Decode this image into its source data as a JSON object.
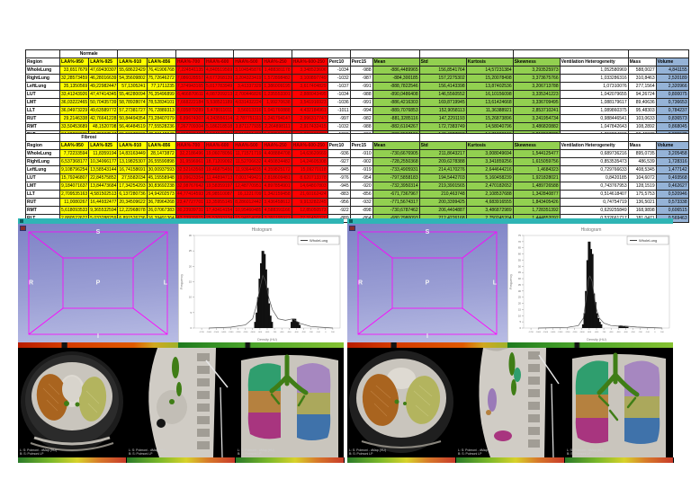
{
  "colors": {
    "laa_bg": "#FFFF00",
    "haa_bg": "#FF0000",
    "haa_text": "#7A0000",
    "stat_bg": "#92D050",
    "volume_bg": "#95B3D7",
    "titlebar_teal": "#2FB5B5",
    "wireframe_magenta": "#FF00FF"
  },
  "table_columns": [
    {
      "label": "Region",
      "group": "white"
    },
    {
      "label": "LAA%-950",
      "group": "yellow"
    },
    {
      "label": "LAA%-925",
      "group": "yellow"
    },
    {
      "label": "LAA%-910",
      "group": "yellow"
    },
    {
      "label": "LAA%-856",
      "group": "yellow"
    },
    {
      "label": "HAA%-700",
      "group": "red"
    },
    {
      "label": "HAA%-600",
      "group": "red"
    },
    {
      "label": "HAA%-500",
      "group": "red"
    },
    {
      "label": "HAA%-250",
      "group": "red"
    },
    {
      "label": "HAA%-600-250",
      "group": "red"
    },
    {
      "label": "Perc10",
      "group": "white"
    },
    {
      "label": "Perc15",
      "group": "white"
    },
    {
      "label": "Mean",
      "group": "green"
    },
    {
      "label": "Std",
      "group": "green"
    },
    {
      "label": "Kurtosis",
      "group": "green"
    },
    {
      "label": "Skewness",
      "group": "green"
    },
    {
      "label": "Ventilation Heterogeneity",
      "group": "white"
    },
    {
      "label": "Mass",
      "group": "white"
    },
    {
      "label": "Volume",
      "group": "blue"
    }
  ],
  "tables": [
    {
      "title": "Normale",
      "rows": [
        {
          "region": "WholeLung",
          "values": [
            "33,6517679",
            "47,69430307",
            "55,68622429",
            "76,41906768",
            "7,224541135",
            "4,840519569",
            "3,104545876",
            "1,488381178",
            "3,348523606",
            "-1034",
            "-988",
            "-886,4489965",
            "156,8541764",
            "14,57231384",
            "3,293525973",
            "1,052580969",
            "588,0027",
            "4,841155"
          ]
        },
        {
          "region": "RightLung",
          "values": [
            "32,28573459",
            "46,28016639",
            "54,35609802",
            "75,72646272",
            "7,086028557",
            "4,677268139",
            "3,204323419",
            "1,572898482",
            "3,100897749",
            "-1032",
            "-987",
            "-884,300185",
            "157,2275302",
            "15,20078498",
            "3,373675766",
            "1,033286316",
            "310,8463",
            "2,520189"
          ]
        },
        {
          "region": "LeftLung",
          "values": [
            "35,1350569",
            "49,22982447",
            "57,1305241",
            "77,1711235",
            "7,374943165",
            "5,017783949",
            "3,41337329",
            "1,386009195",
            "3,617404829",
            "-1037",
            "-991",
            "-888,7822546",
            "156,4143398",
            "13,87402536",
            "3,206713788",
            "1,07310076",
            "277,1564",
            "2,320966"
          ]
        },
        {
          "region": "LUT",
          "values": [
            "33,41243926",
            "47,47414345",
            "55,46280094",
            "76,35496899",
            "6,466870611",
            "4,087209213",
            "2,700446826",
            "1,235553301",
            "2,888043495",
            "-1034",
            "-988",
            "-890,0486408",
            "146,5560552",
            "16,10156098",
            "3,335341223",
            "1,042079655",
            "94,26724",
            "0,800075"
          ]
        },
        {
          "region": "LMT",
          "values": [
            "36,03222465",
            "50,70435739",
            "58,78928074",
            "78,52834101",
            "7,668222184",
            "5,538521189",
            "4,031432224",
            "1,99270638",
            "3,541916923",
            "-1036",
            "-991",
            "-886,4216303",
            "169,8719945",
            "13,61424668",
            "3,336709495",
            "1,088179617",
            "89,40636",
            "0,736653"
          ]
        },
        {
          "region": "LLT",
          "values": [
            "36,04973229",
            "49,63589772",
            "57,27381727",
            "76,72889313",
            "8,035870289",
            "5,478011011",
            "3,56013316",
            "1,041760888",
            "4,432184961",
            "-1011",
            "-994",
            "-889,7076853",
            "152,9058113",
            "11,36388921",
            "2,853710241",
            "1,089860375",
            "95,48303",
            "0,784237"
          ]
        },
        {
          "region": "RUT",
          "values": [
            "29,2146338",
            "42,76641228",
            "50,84494354",
            "73,28407079",
            "6,89674307",
            "4,243556114",
            "2,787751111",
            "1,241794147",
            "2,996317747",
            "-997",
            "-982",
            "-881,3285116",
            "147,2291193",
            "15,26873896",
            "3,241954734",
            "0,988446541",
            "103,0633",
            "0,836573"
          ]
        },
        {
          "region": "RMT",
          "values": [
            "33,50453689",
            "48,1520708",
            "56,46484519",
            "77,55528236",
            "7,267709304",
            "5,186218518",
            "3,871177935",
            "2,264898111",
            "2,917432415",
            "-1032",
            "-988",
            "-882,6104267",
            "172,7383749",
            "14,58040796",
            "3,486820882",
            "1,047842643",
            "108,2892",
            "0,868045"
          ]
        },
        {
          "region": "RLT",
          "values": [
            "34,02083871",
            "47,76937547",
            "55,59673936",
            "76,21142848",
            "7,062208489",
            "4,574343554",
            "2,918051437",
            "1,177581558",
            "3,393695281",
            "-1036",
            "-991",
            "-888,9597191",
            "149,4827898",
            "14,71800106",
            "3,213617985",
            "1,059284939",
            "99,49378",
            "0,835572"
          ]
        }
      ]
    },
    {
      "title": "Fibrosi",
      "rows": [
        {
          "region": "WholeLung",
          "values": [
            "7,72233594",
            "11,8359194",
            "14,83163449",
            "28,1473872",
            "32,2186496",
            "19,06078056",
            "11,71571719",
            "4,408884708",
            "14,63620669",
            "-936",
            "-910",
            "-730,6676905",
            "211,8643217",
            "3,008049694",
            "1,544125477",
            "0,689736216",
            "895,0735",
            "3,205458"
          ]
        },
        {
          "region": "RightLung",
          "values": [
            "6,537368177",
            "10,34066177",
            "13,19825307",
            "26,55590898",
            "31,9596961",
            "18,71209092",
            "11,52706632",
            "4,450834482",
            "14,24605308",
            "-927",
            "-902",
            "-728,2550368",
            "209,6278388",
            "3,341859256",
            "1,615059756",
            "0,853535473",
            "486,539",
            "1,728316"
          ]
        },
        {
          "region": "LeftLung",
          "values": [
            "9,108796254",
            "13,58543144",
            "16,74158691",
            "30,00937593",
            "32,52163568",
            "19,46875456",
            "11,93644835",
            "4,359825172",
            "15,09270118",
            "-945",
            "-919",
            "-733,4905931",
            "214,4170276",
            "2,644644216",
            "1,4684323",
            "0,729766633",
            "408,5345",
            "1,477142"
          ]
        },
        {
          "region": "LUT",
          "values": [
            "15,79246807",
            "22,84575852",
            "27,5582034",
            "45,15558948",
            "19,09623354",
            "11,44894713",
            "7,001749421",
            "2,818609481",
            "8,620713378",
            "-976",
            "-954",
            "-797,5858183",
            "194,5442703",
            "5,160458239",
            "1,921828021",
            "0,8420185",
            "104,6072",
            "0,493568"
          ]
        },
        {
          "region": "LMT",
          "values": [
            "9,184071637",
            "13,84473684",
            "17,34254293",
            "30,83692238",
            "32,08767642",
            "19,58359197",
            "12,48770951",
            "4,897854901",
            "14,64807803",
            "-945",
            "-920",
            "-732,3950314",
            "219,3901565",
            "2,470182652",
            "1,489726588",
            "0,743767953",
            "128,1519",
            "0,462627"
          ]
        },
        {
          "region": "LLT",
          "values": [
            "2,709535163",
            "4,581502513",
            "6,137280736",
            "14,94202573",
            "44,77414593",
            "26,98510087",
            "16,1221709",
            "1,342159458",
            "21,60162424",
            "-883",
            "-856",
            "-671,7367967",
            "210,463748",
            "2,108537688",
            "1,342840877",
            "0,514618407",
            "175,5753",
            "0,520946"
          ]
        },
        {
          "region": "RUT",
          "values": [
            "11,0080267",
            "16,44932477",
            "20,34509622",
            "36,78964268",
            "23,47727701",
            "13,35955145",
            "8,286012442",
            "3,436458612",
            "9,913282245",
            "-956",
            "-932",
            "-771,5674317",
            "200,3399425",
            "4,683916555",
            "1,843405426",
            "0,74754719",
            "136,5021",
            "0,573338"
          ]
        },
        {
          "region": "RMT",
          "values": [
            "5,618093533",
            "9,365532594",
            "12,22968078",
            "26,07067383",
            "30,23939731",
            "17,43414154",
            "10,95460485",
            "4,588391166",
            "12,85050573",
            "-922",
            "-898",
            "-730,6787462",
            "206,4404887",
            "3,486872989",
            "1,728351392",
            "0,629255849",
            "168,9898",
            "0,606515"
          ]
        },
        {
          "region": "RLT",
          "values": [
            "2,880522622",
            "5,033288259",
            "6,891526236",
            "16,39491364",
            "42,73939915",
            "25,53093134",
            "15,94914096",
            "3,391195921",
            "22,31450326",
            "-889",
            "-864",
            "-680,2980093",
            "212,4226168",
            "2,750245204",
            "1,444852092",
            "0,532661717",
            "181,0471",
            "0,569463"
          ]
        }
      ]
    }
  ],
  "panels": [
    {
      "orientation": {
        "top": "S",
        "left": "R",
        "center": "P",
        "right": "L",
        "bottom": "I"
      },
      "ct_views": [
        {
          "name": "axial",
          "overlay1": "L: S: Polmoni - dMap (HU)",
          "overlay2": "B: S: Polmoni LP"
        },
        {
          "name": "sagittal",
          "overlay1": "L: S: Polmoni - dMap (HU)",
          "overlay2": "B: S: Polmoni LP"
        },
        {
          "name": "coronal",
          "overlay1": "L: S: Polmoni - dMap (HU)",
          "overlay2": "B: S: Polmoni LP"
        }
      ]
    },
    {
      "orientation": {
        "top": "S",
        "left": "R",
        "center": "P",
        "right": "L",
        "bottom": "I"
      },
      "ct_views": [
        {
          "name": "axial",
          "overlay1": "L: S: Polmoni - dMap (HU)",
          "overlay2": "B: S: Polmoni LP"
        },
        {
          "name": "sagittal",
          "overlay1": "L: S: Polmoni - dMap (HU)",
          "overlay2": "B: S: Polmoni LP"
        },
        {
          "name": "coronal",
          "overlay1": "L: S: Polmoni - dMap (HU)",
          "overlay2": "B: S: Polmoni LP"
        }
      ]
    }
  ],
  "chart_data": [
    {
      "type": "bar",
      "title": "Histogram",
      "legend": "WholeLung",
      "xlabel": "Density (HU)",
      "ylabel": "Frequency",
      "xlim": [
        -1800,
        200
      ],
      "ylim": [
        0,
        30
      ],
      "xtick_step": 100,
      "ytick_step": 5,
      "bins": [
        [
          -960,
          2
        ],
        [
          -940,
          5
        ],
        [
          -920,
          10
        ],
        [
          -900,
          16
        ],
        [
          -880,
          21
        ],
        [
          -860,
          25
        ],
        [
          -840,
          24
        ],
        [
          -820,
          19
        ],
        [
          -800,
          13
        ],
        [
          -780,
          8
        ],
        [
          -760,
          4
        ],
        [
          -740,
          2
        ],
        [
          -460,
          2
        ],
        [
          -440,
          3
        ],
        [
          -420,
          3
        ],
        [
          -400,
          2
        ],
        [
          -380,
          2
        ],
        [
          -360,
          1
        ]
      ],
      "curve": [
        [
          -1600,
          0
        ],
        [
          -1300,
          0.3
        ],
        [
          -1100,
          1
        ],
        [
          -1000,
          3
        ],
        [
          -950,
          7
        ],
        [
          -900,
          13
        ],
        [
          -860,
          17
        ],
        [
          -820,
          15
        ],
        [
          -780,
          10
        ],
        [
          -730,
          6
        ],
        [
          -650,
          3
        ],
        [
          -550,
          2.5
        ],
        [
          -450,
          3
        ],
        [
          -350,
          1.5
        ],
        [
          -200,
          0.5
        ],
        [
          100,
          0
        ]
      ]
    },
    {
      "type": "bar",
      "title": "Histogram",
      "legend": "WholeLung",
      "xlabel": "Density (HU)",
      "ylabel": "Frequency",
      "xlim": [
        -1800,
        200
      ],
      "ylim": [
        0,
        75
      ],
      "xtick_step": 100,
      "ytick_step": 5,
      "bins": [
        [
          -980,
          3
        ],
        [
          -960,
          12
        ],
        [
          -940,
          30
        ],
        [
          -920,
          55
        ],
        [
          -900,
          70
        ],
        [
          -880,
          64
        ],
        [
          -870,
          38
        ],
        [
          -860,
          60
        ],
        [
          -840,
          28
        ],
        [
          -820,
          21
        ],
        [
          -800,
          12
        ],
        [
          -780,
          8
        ],
        [
          -760,
          5
        ],
        [
          -740,
          3
        ],
        [
          -480,
          2
        ],
        [
          -460,
          2
        ],
        [
          -440,
          1.5
        ],
        [
          -420,
          1.5
        ],
        [
          -400,
          1
        ],
        [
          -380,
          1
        ]
      ],
      "curve": [
        [
          -1600,
          0
        ],
        [
          -1200,
          0.5
        ],
        [
          -1050,
          2
        ],
        [
          -980,
          8
        ],
        [
          -940,
          25
        ],
        [
          -910,
          40
        ],
        [
          -890,
          42
        ],
        [
          -860,
          38
        ],
        [
          -830,
          25
        ],
        [
          -800,
          15
        ],
        [
          -760,
          8
        ],
        [
          -700,
          4
        ],
        [
          -600,
          2
        ],
        [
          -500,
          1.5
        ],
        [
          -400,
          1.5
        ],
        [
          -250,
          0.8
        ],
        [
          100,
          0
        ]
      ]
    }
  ]
}
